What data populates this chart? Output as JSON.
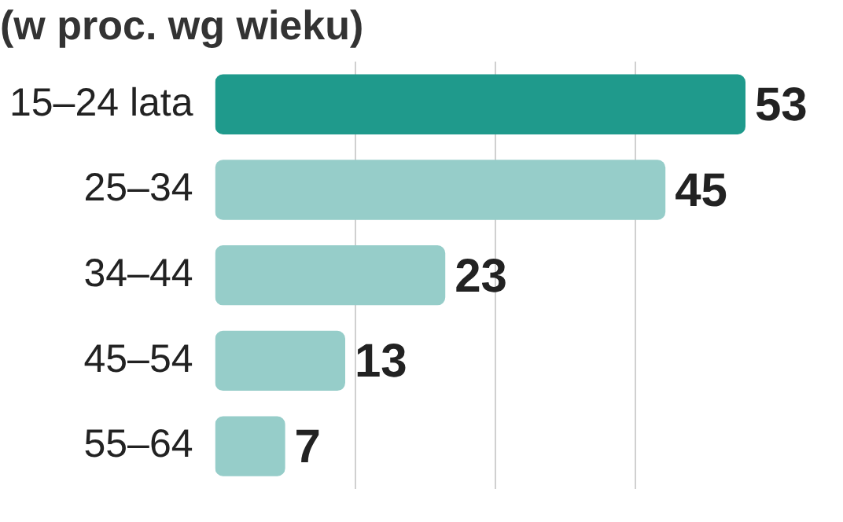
{
  "chart_data": {
    "type": "bar",
    "orientation": "horizontal",
    "title": "(w proc. wg wieku)",
    "categories": [
      "15–24 lata",
      "25–34",
      "34–44",
      "45–54",
      "55–64"
    ],
    "values": [
      53,
      45,
      23,
      13,
      7
    ],
    "colors": [
      "#1f9a8c",
      "#96cdc9",
      "#96cdc9",
      "#96cdc9",
      "#96cdc9"
    ],
    "xlim": [
      0,
      53
    ],
    "xticks": [
      {
        "value": 14,
        "label": null
      },
      {
        "value": 28,
        "label": null
      },
      {
        "value": 42,
        "label": null
      }
    ],
    "grid": "x",
    "tick_labels": "y",
    "data_labels": true
  }
}
